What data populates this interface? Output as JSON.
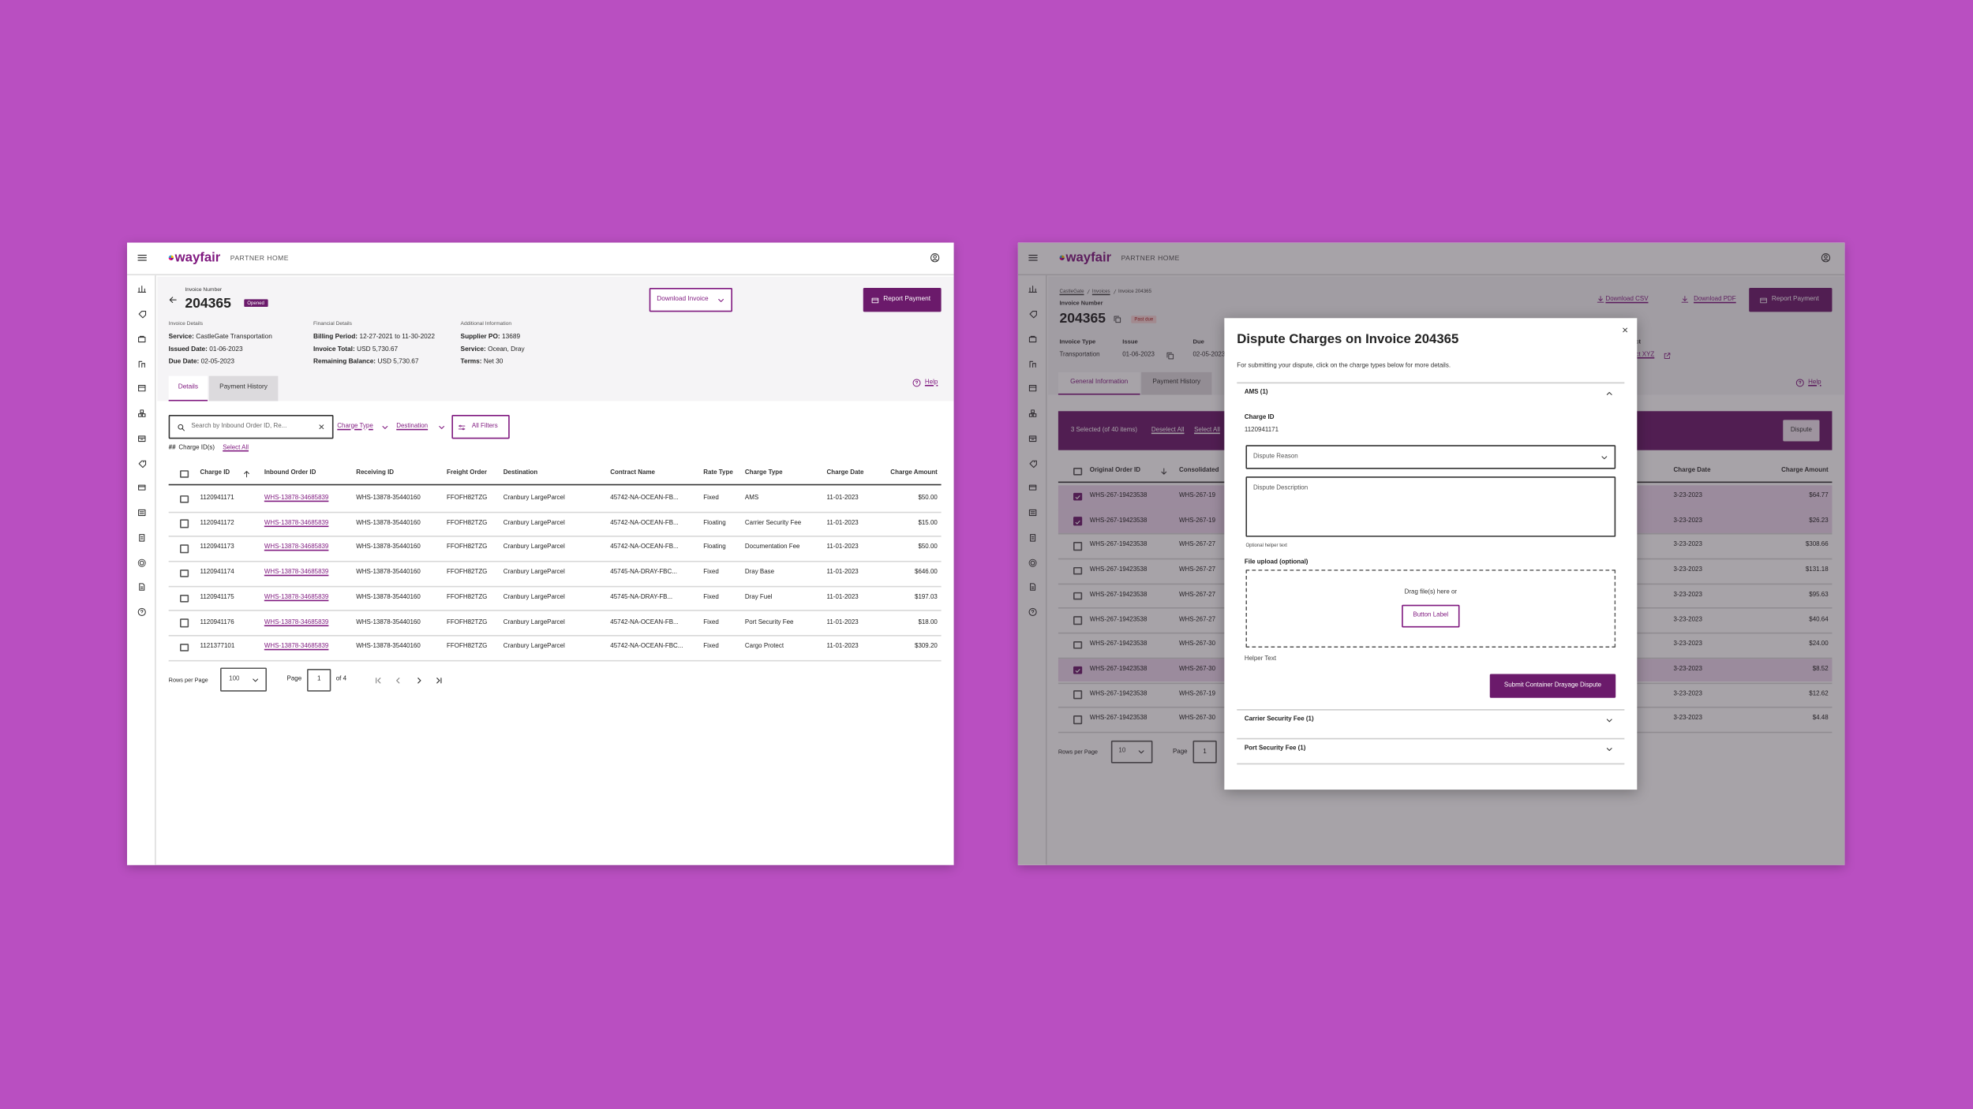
{
  "left": {
    "brand": "wayfair",
    "brand_sub": "PARTNER HOME",
    "invoice_label": "Invoice Number",
    "invoice_number": "204365",
    "status": "Opened",
    "download_button": "Download Invoice",
    "payment_button": "Report Payment",
    "sections": [
      {
        "title": "Invoice Details",
        "items": [
          {
            "label": "Service:",
            "value": "CastleGate Transportation"
          },
          {
            "label": "Issued Date:",
            "value": "01-06-2023"
          },
          {
            "label": "Due Date:",
            "value": "02-05-2023"
          }
        ]
      },
      {
        "title": "Financial Details",
        "items": [
          {
            "label": "Billing Period:",
            "value": "12-27-2021 to 11-30-2022"
          },
          {
            "label": "Invoice Total:",
            "value": "USD 5,730.67"
          },
          {
            "label": "Remaining Balance:",
            "value": "USD 5,730.67"
          }
        ]
      },
      {
        "title": "Additional Information",
        "items": [
          {
            "label": "Supplier PO:",
            "value": "13689"
          },
          {
            "label": "Service:",
            "value": "Ocean, Dray"
          },
          {
            "label": "Terms:",
            "value": "Net 30"
          }
        ]
      }
    ],
    "tabs": [
      "Details",
      "Payment History"
    ],
    "help": "Help",
    "search_placeholder": "Search by Inbound Order ID, Re...",
    "filters": [
      "Charge Type",
      "Destination"
    ],
    "all_filters": "All Filters",
    "selection": {
      "count": "##",
      "label": "Charge ID(s)",
      "action": "Select All"
    },
    "table": {
      "columns": [
        "Charge ID",
        "Inbound Order ID",
        "Receiving ID",
        "Freight Order",
        "Destination",
        "Contract Name",
        "Rate Type",
        "Charge Type",
        "Charge Date",
        "Charge Amount"
      ],
      "rows": [
        [
          "1120941171",
          "WHS-13878-34685839",
          "WHS-13878-35440160",
          "FFOFH82TZG",
          "Cranbury LargeParcel",
          "45742-NA-OCEAN-FB...",
          "Fixed",
          "AMS",
          "11-01-2023",
          "$50.00"
        ],
        [
          "1120941172",
          "WHS-13878-34685839",
          "WHS-13878-35440160",
          "FFOFH82TZG",
          "Cranbury LargeParcel",
          "45742-NA-OCEAN-FB...",
          "Floating",
          "Carrier Security Fee",
          "11-01-2023",
          "$15.00"
        ],
        [
          "1120941173",
          "WHS-13878-34685839",
          "WHS-13878-35440160",
          "FFOFH82TZG",
          "Cranbury LargeParcel",
          "45742-NA-OCEAN-FB...",
          "Floating",
          "Documentation Fee",
          "11-01-2023",
          "$50.00"
        ],
        [
          "1120941174",
          "WHS-13878-34685839",
          "WHS-13878-35440160",
          "FFOFH82TZG",
          "Cranbury LargeParcel",
          "45745-NA-DRAY-FBC...",
          "Fixed",
          "Dray Base",
          "11-01-2023",
          "$646.00"
        ],
        [
          "1120941175",
          "WHS-13878-34685839",
          "WHS-13878-35440160",
          "FFOFH82TZG",
          "Cranbury LargeParcel",
          "45745-NA-DRAY-FB...",
          "Fixed",
          "Dray Fuel",
          "11-01-2023",
          "$197.03"
        ],
        [
          "1120941176",
          "WHS-13878-34685839",
          "WHS-13878-35440160",
          "FFOFH82TZG",
          "Cranbury LargeParcel",
          "45742-NA-OCEAN-FB...",
          "Fixed",
          "Port Security Fee",
          "11-01-2023",
          "$18.00"
        ],
        [
          "1121377101",
          "WHS-13878-34685839",
          "WHS-13878-35440160",
          "FFOFH82TZG",
          "Cranbury LargeParcel",
          "45742-NA-OCEAN-FBC...",
          "Fixed",
          "Cargo Protect",
          "11-01-2023",
          "$309.20"
        ]
      ]
    },
    "pagination": {
      "rows_label": "Rows per Page",
      "rows_value": "100",
      "page_label": "Page",
      "page_value": "1",
      "page_total": "of 4"
    }
  },
  "right": {
    "brand": "wayfair",
    "brand_sub": "PARTNER HOME",
    "breadcrumbs": [
      "CastleGate",
      "Invoices",
      "Invoice 204365"
    ],
    "invoice_label": "Invoice Number",
    "invoice_number": "204365",
    "status": "Past due",
    "links": [
      "Download CSV",
      "Download PDF"
    ],
    "payment_button": "Report Payment",
    "fields": [
      {
        "label": "Invoice Type",
        "value": "Transportation"
      },
      {
        "label": "Issue",
        "value": "01-06-2023"
      },
      {
        "label": "Due",
        "value": "02-05-2023"
      },
      {
        "label": "ect",
        "value": "ect XYZ"
      }
    ],
    "tabs": [
      "General Information",
      "Payment History"
    ],
    "help": "Help",
    "selection": {
      "text": "3 Selected (of 40 items)",
      "deselect": "Deselect All",
      "select": "Select All",
      "action": "Dispute"
    },
    "table": {
      "columns": [
        "Original Order ID",
        "Consolidated",
        "Charge Date",
        "Charge Amount"
      ],
      "rows": [
        [
          "WHS-267-19423538",
          "WHS-267-19",
          "3-23-2023",
          "$64.77"
        ],
        [
          "WHS-267-19423538",
          "WHS-267-19",
          "3-23-2023",
          "$26.23"
        ],
        [
          "WHS-267-19423538",
          "WHS-267-27",
          "3-23-2023",
          "$308.66"
        ],
        [
          "WHS-267-19423538",
          "WHS-267-27",
          "3-23-2023",
          "$131.18"
        ],
        [
          "WHS-267-19423538",
          "WHS-267-27",
          "3-23-2023",
          "$95.63"
        ],
        [
          "WHS-267-19423538",
          "WHS-267-27",
          "3-23-2023",
          "$40.64"
        ],
        [
          "WHS-267-19423538",
          "WHS-267-30",
          "3-23-2023",
          "$24.00"
        ],
        [
          "WHS-267-19423538",
          "WHS-267-30",
          "3-23-2023",
          "$8.52"
        ],
        [
          "WHS-267-19423538",
          "WHS-267-19",
          "3-23-2023",
          "$12.62"
        ],
        [
          "WHS-267-19423538",
          "WHS-267-30",
          "3-23-2023",
          "$4.48"
        ]
      ],
      "selected": [
        true,
        true,
        false,
        false,
        false,
        false,
        false,
        true,
        false,
        false
      ]
    },
    "pagination": {
      "rows_label": "Rows per Page",
      "rows_value": "10",
      "page_label": "Page",
      "page_value": "1"
    }
  },
  "modal": {
    "title": "Dispute Charges on Invoice 204365",
    "instructions": "For submitting your dispute, click on the charge types below for more details.",
    "sections": [
      {
        "title": "AMS (1)",
        "expanded": true
      },
      {
        "title": "Carrier Security Fee (1)",
        "expanded": false
      },
      {
        "title": "Port Security Fee (1)",
        "expanded": false
      }
    ],
    "charge_id_label": "Charge ID",
    "charge_id": "1120941171",
    "reason_placeholder": "Dispute Reason",
    "description_placeholder": "Dispute Description",
    "description_helper": "Optional helper text",
    "upload_label": "File upload (optional)",
    "upload_prompt": "Drag file(s) here or",
    "upload_button": "Button Label",
    "upload_helper": "Helper Text",
    "submit": "Submit Container Drayage Dispute"
  }
}
